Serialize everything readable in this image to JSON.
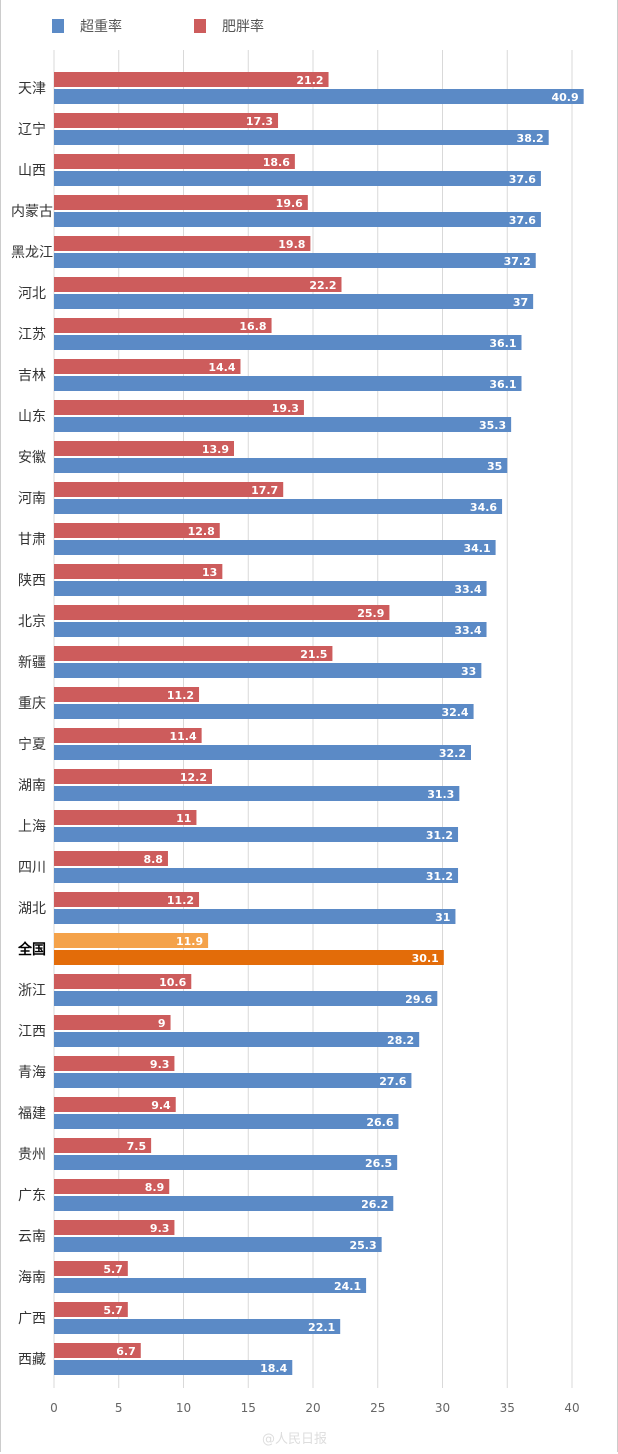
{
  "chart_data": {
    "type": "bar",
    "orientation": "horizontal",
    "title": "",
    "xlabel": "",
    "ylabel": "",
    "xlim": [
      0,
      40
    ],
    "xticks": [
      0,
      5,
      10,
      15,
      20,
      25,
      30,
      35,
      40
    ],
    "grid": true,
    "legend_placement": "top-left",
    "categories": [
      "天津",
      "辽宁",
      "山西",
      "内蒙古",
      "黑龙江",
      "河北",
      "江苏",
      "吉林",
      "山东",
      "安徽",
      "河南",
      "甘肃",
      "陕西",
      "北京",
      "新疆",
      "重庆",
      "宁夏",
      "湖南",
      "上海",
      "四川",
      "湖北",
      "全国",
      "浙江",
      "江西",
      "青海",
      "福建",
      "贵州",
      "广东",
      "云南",
      "海南",
      "广西",
      "西藏"
    ],
    "highlight_category": "全国",
    "series": [
      {
        "name": "超重率",
        "color": "#5b8ac6",
        "highlight_color": "#e36c09",
        "values": [
          40.9,
          38.2,
          37.6,
          37.6,
          37.2,
          37,
          36.1,
          36.1,
          35.3,
          35,
          34.6,
          34.1,
          33.4,
          33.4,
          33,
          32.4,
          32.2,
          31.3,
          31.2,
          31.2,
          31,
          30.1,
          29.6,
          28.2,
          27.6,
          26.6,
          26.5,
          26.2,
          25.3,
          24.1,
          22.1,
          18.4
        ]
      },
      {
        "name": "肥胖率",
        "color": "#cd5c5c",
        "highlight_color": "#f4a24a",
        "values": [
          21.2,
          17.3,
          18.6,
          19.6,
          19.8,
          22.2,
          16.8,
          14.4,
          19.3,
          13.9,
          17.7,
          12.8,
          13,
          25.9,
          21.5,
          11.2,
          11.4,
          12.2,
          11,
          8.8,
          11.2,
          11.9,
          10.6,
          9,
          9.3,
          9.4,
          7.5,
          8.9,
          9.3,
          5.7,
          5.7,
          6.7
        ]
      }
    ]
  },
  "watermark": "@人民日报"
}
